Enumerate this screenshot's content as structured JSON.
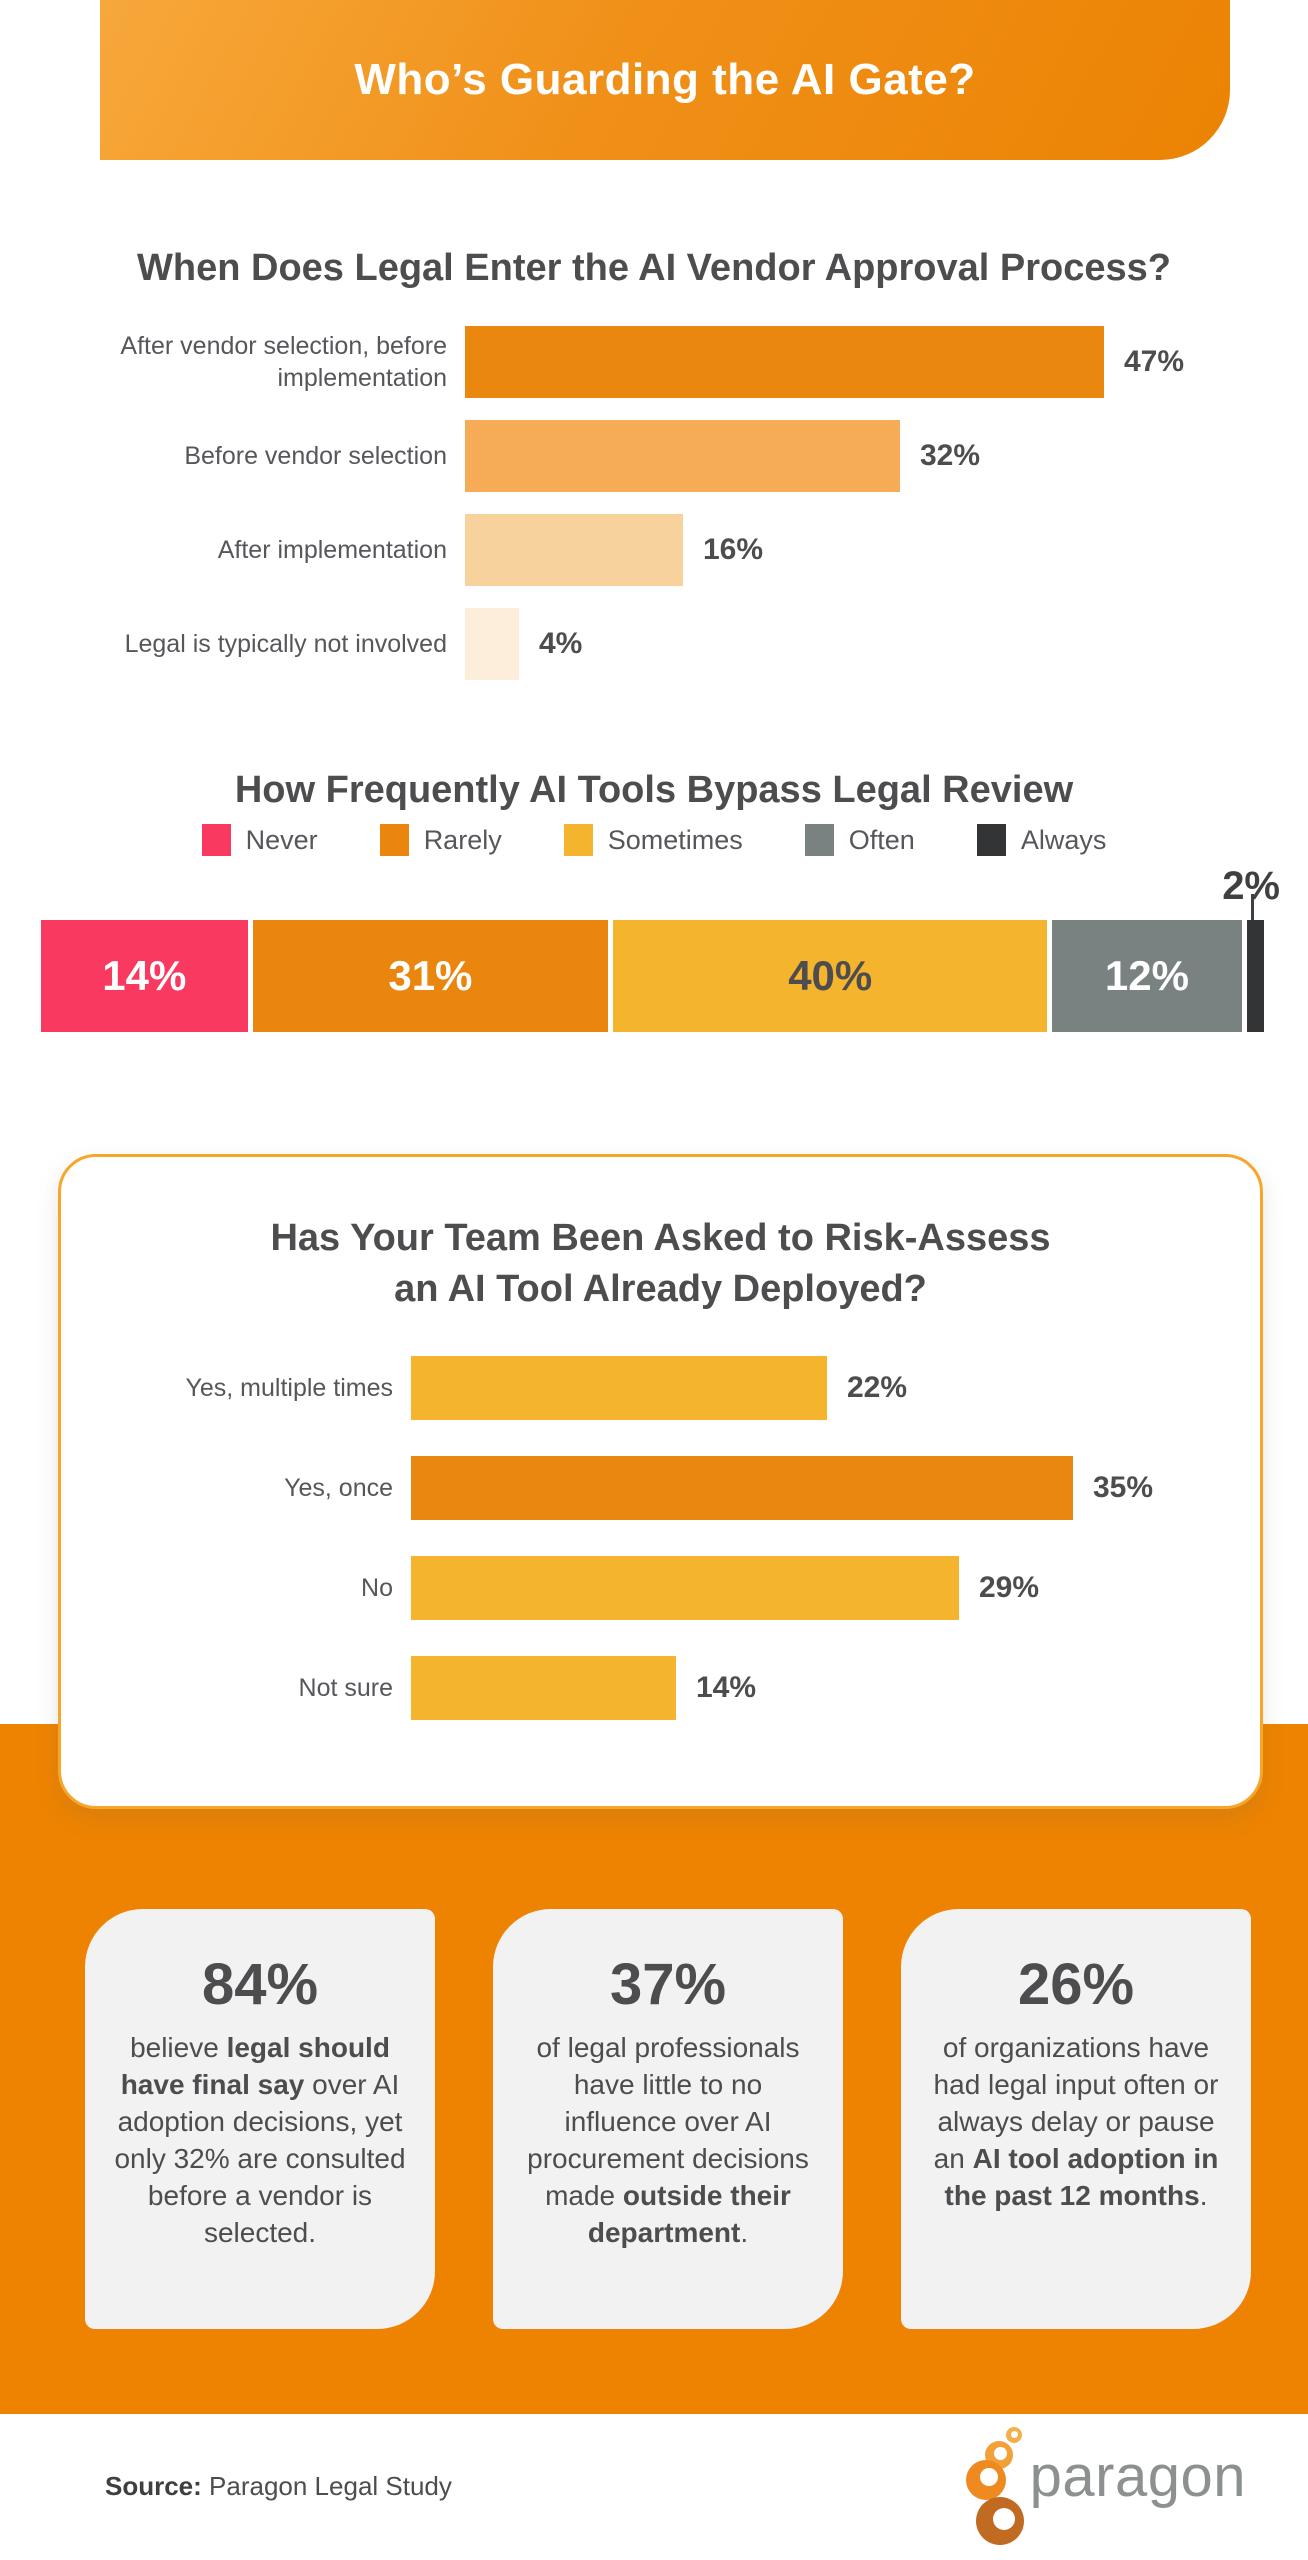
{
  "header": {
    "title": "Who’s Guarding the AI Gate?"
  },
  "colors": {
    "header_gradient_start": "#F7A83B",
    "header_gradient_end": "#EB8304",
    "section_background": "#EE8301",
    "stat_card_background": "#F2F2F3",
    "title_text": "#4D4D4F",
    "label_text": "#56575A",
    "logo_gray": "#8C9091"
  },
  "chart_data": [
    {
      "type": "bar",
      "orientation": "horizontal",
      "title": "When Does Legal Enter the AI Vendor Approval Process?",
      "categories": [
        "After vendor selection, before implementation",
        "Before vendor selection",
        "After implementation",
        "Legal is typically not involved"
      ],
      "label_lines": [
        [
          "After vendor selection, before",
          "implementation"
        ],
        [
          "Before vendor selection"
        ],
        [
          "After implementation"
        ],
        [
          "Legal is typically not involved"
        ]
      ],
      "values": [
        47,
        32,
        16,
        4
      ],
      "value_labels": [
        "47%",
        "32%",
        "16%",
        "4%"
      ],
      "bar_colors": [
        "#EA870E",
        "#F6AC57",
        "#F8D29D",
        "#FCEEDA"
      ],
      "xlim": [
        0,
        50
      ],
      "grid": false
    },
    {
      "type": "bar",
      "subtype": "stacked-single-row",
      "title": "How Frequently AI Tools Bypass Legal Review",
      "categories": [
        "Never",
        "Rarely",
        "Sometimes",
        "Often",
        "Always"
      ],
      "values": [
        14,
        31,
        40,
        12,
        2
      ],
      "value_labels": [
        "14%",
        "31%",
        "40%",
        "12%",
        "2%"
      ],
      "segment_colors": [
        "#F9395F",
        "#EA860D",
        "#F5B42D",
        "#798280",
        "#333435"
      ],
      "segment_text_colors": [
        "#FFFFFF",
        "#FFFFFF",
        "#4D4D4F",
        "#FFFFFF",
        "#4D4D4F"
      ],
      "legend_position": "top",
      "note": "2% segment labeled above bar with connector line"
    },
    {
      "type": "bar",
      "orientation": "horizontal",
      "title": "Has Your Team Been Asked to Risk-Assess an AI Tool Already Deployed?",
      "title_lines": [
        "Has Your Team Been Asked to Risk-Assess",
        "an AI Tool Already Deployed?"
      ],
      "categories": [
        "Yes, multiple times",
        "Yes, once",
        "No",
        "Not sure"
      ],
      "label_lines": [
        [
          "Yes, multiple times"
        ],
        [
          "Yes, once"
        ],
        [
          "No"
        ],
        [
          "Not sure"
        ]
      ],
      "values": [
        22,
        35,
        29,
        14
      ],
      "value_labels": [
        "22%",
        "35%",
        "29%",
        "14%"
      ],
      "bar_colors": [
        "#F5B42D",
        "#EA870E",
        "#F5B42D",
        "#F5B42D"
      ],
      "xlim": [
        0,
        37
      ],
      "grid": false
    }
  ],
  "stats": {
    "cards": [
      {
        "value": "84%",
        "pre": "believe ",
        "bold": "legal should have final say",
        "post": " over AI adoption decisions, yet only 32% are consulted before a vendor is selected."
      },
      {
        "value": "37%",
        "pre": "of legal professionals have little to no influence over AI procurement decisions made ",
        "bold": "outside their department",
        "post": "."
      },
      {
        "value": "26%",
        "pre": "of organizations have had legal input often or always delay or pause an ",
        "bold": "AI tool adoption in the past 12 months",
        "post": "."
      }
    ]
  },
  "footer": {
    "source_label": "Source:",
    "source_text": " Paragon Legal Study",
    "logo_text": "paragon"
  }
}
